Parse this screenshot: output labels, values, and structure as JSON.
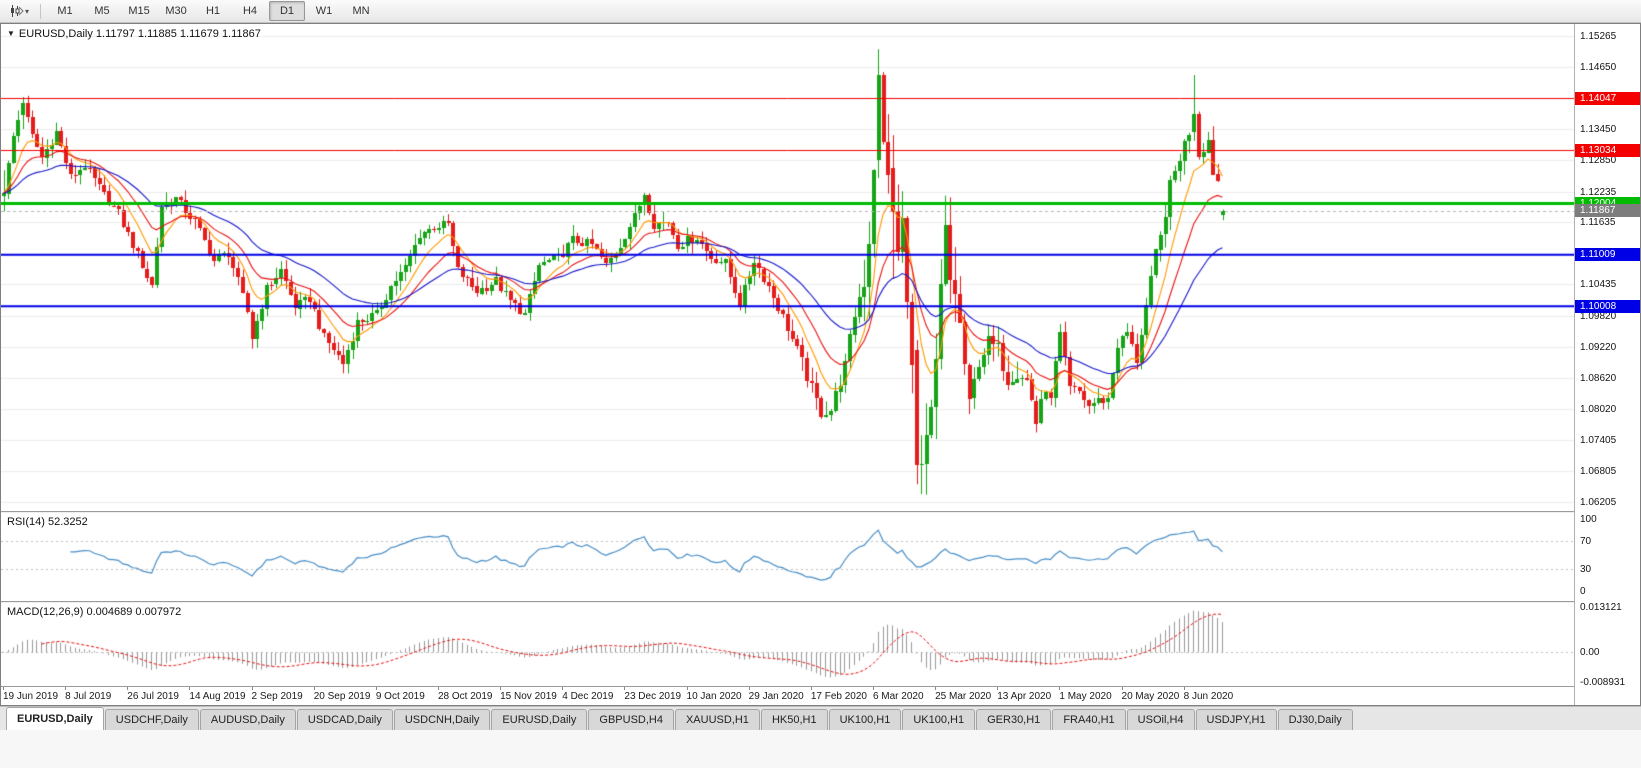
{
  "icons": {
    "window_marker": "▼",
    "chart_dropdown": "▾"
  },
  "toolbar": {
    "timeframes": [
      "M1",
      "M5",
      "M15",
      "M30",
      "H1",
      "H4",
      "D1",
      "W1",
      "MN"
    ],
    "active_timeframe": "D1"
  },
  "tabs": {
    "items": [
      "EURUSD,Daily",
      "USDCHF,Daily",
      "AUDUSD,Daily",
      "USDCAD,Daily",
      "USDCNH,Daily",
      "EURUSD,Daily",
      "GBPUSD,H4",
      "XAUUSD,H1",
      "HK50,H1",
      "UK100,H1",
      "UK100,H1",
      "GER30,H1",
      "FRA40,H1",
      "USOil,H4",
      "USDJPY,H1",
      "DJ30,Daily"
    ],
    "active_index": 0
  },
  "chart_data": {
    "type": "candlestick",
    "symbol": "EURUSD",
    "period": "Daily",
    "main_title": "EURUSD,Daily 1.11797 1.11885 1.11679 1.11867",
    "ohlc": {
      "open": 1.11797,
      "high": 1.11885,
      "low": 1.11679,
      "close": 1.11867
    },
    "candle_colors": {
      "up": "#17a317",
      "down": "#e51c1c"
    },
    "num_candles": 256,
    "y_axis_range": {
      "top": 1.1549,
      "bottom": 1.0603
    },
    "y_axis_ticks": [
      "1.15265",
      "1.14650",
      "1.13450",
      "1.12850",
      "1.12235",
      "1.11635",
      "1.10435",
      "1.09820",
      "1.09220",
      "1.08620",
      "1.08020",
      "1.07405",
      "1.06805",
      "1.06205"
    ],
    "horizontal_lines": [
      {
        "price": 1.14047,
        "color": "#f40000",
        "width": 1,
        "label": "1.14047"
      },
      {
        "price": 1.13034,
        "color": "#f40000",
        "width": 1,
        "label": "1.13034"
      },
      {
        "price": 1.12004,
        "color": "#00bb00",
        "width": 3,
        "label": "1.12004"
      },
      {
        "price": 1.11009,
        "color": "#0000e6",
        "width": 2,
        "label": "1.11009"
      },
      {
        "price": 1.10008,
        "color": "#0000e6",
        "width": 2,
        "label": "1.10008"
      }
    ],
    "current_price": {
      "value": 1.11867,
      "label": "1.11867",
      "badge_color": "#7d7d7d"
    },
    "moving_averages": [
      {
        "period": 8,
        "color": "#ff9900"
      },
      {
        "period": 16,
        "color": "#e81414"
      },
      {
        "period": 34,
        "color": "#1818cc"
      }
    ],
    "x_axis_labels": [
      [
        "19 Jun 2019",
        0
      ],
      [
        "8 Jul 2019",
        13
      ],
      [
        "26 Jul 2019",
        26
      ],
      [
        "14 Aug 2019",
        39
      ],
      [
        "2 Sep 2019",
        52
      ],
      [
        "20 Sep 2019",
        65
      ],
      [
        "9 Oct 2019",
        78
      ],
      [
        "28 Oct 2019",
        91
      ],
      [
        "15 Nov 2019",
        104
      ],
      [
        "4 Dec 2019",
        117
      ],
      [
        "23 Dec 2019",
        130
      ],
      [
        "10 Jan 2020",
        143
      ],
      [
        "29 Jan 2020",
        156
      ],
      [
        "17 Feb 2020",
        169
      ],
      [
        "6 Mar 2020",
        182
      ],
      [
        "25 Mar 2020",
        195
      ],
      [
        "13 Apr 2020",
        208
      ],
      [
        "1 May 2020",
        221
      ],
      [
        "20 May 2020",
        234
      ],
      [
        "8 Jun 2020",
        247
      ]
    ],
    "price_path_waypoints": [
      [
        0,
        1.122
      ],
      [
        2,
        1.133
      ],
      [
        4,
        1.1395
      ],
      [
        6,
        1.133
      ],
      [
        8,
        1.129
      ],
      [
        11,
        1.134
      ],
      [
        14,
        1.125
      ],
      [
        17,
        1.1275
      ],
      [
        20,
        1.123
      ],
      [
        24,
        1.118
      ],
      [
        27,
        1.112
      ],
      [
        31,
        1.104
      ],
      [
        33,
        1.1195
      ],
      [
        36,
        1.121
      ],
      [
        40,
        1.1165
      ],
      [
        44,
        1.109
      ],
      [
        47,
        1.1105
      ],
      [
        51,
        1.099
      ],
      [
        52,
        1.094
      ],
      [
        55,
        1.1035
      ],
      [
        58,
        1.107
      ],
      [
        61,
        1.1
      ],
      [
        64,
        1.1015
      ],
      [
        67,
        1.094
      ],
      [
        70,
        1.0905
      ],
      [
        71,
        1.089
      ],
      [
        74,
        1.097
      ],
      [
        78,
        1.0985
      ],
      [
        81,
        1.104
      ],
      [
        84,
        1.1075
      ],
      [
        87,
        1.114
      ],
      [
        90,
        1.1155
      ],
      [
        93,
        1.116
      ],
      [
        95,
        1.107
      ],
      [
        99,
        1.103
      ],
      [
        103,
        1.105
      ],
      [
        106,
        1.101
      ],
      [
        109,
        1.0985
      ],
      [
        112,
        1.108
      ],
      [
        116,
        1.1095
      ],
      [
        119,
        1.113
      ],
      [
        123,
        1.112
      ],
      [
        126,
        1.108
      ],
      [
        129,
        1.112
      ],
      [
        132,
        1.1175
      ],
      [
        134,
        1.122
      ],
      [
        136,
        1.116
      ],
      [
        139,
        1.1165
      ],
      [
        141,
        1.112
      ],
      [
        145,
        1.1135
      ],
      [
        148,
        1.1095
      ],
      [
        151,
        1.1085
      ],
      [
        154,
        1.1005
      ],
      [
        157,
        1.109
      ],
      [
        160,
        1.104
      ],
      [
        163,
        1.098
      ],
      [
        166,
        1.0915
      ],
      [
        169,
        1.084
      ],
      [
        171,
        1.0795
      ],
      [
        173,
        1.08
      ],
      [
        176,
        1.0885
      ],
      [
        178,
        1.0985
      ],
      [
        180,
        1.1055
      ],
      [
        181,
        1.1135
      ],
      [
        182,
        1.128
      ],
      [
        183,
        1.145
      ],
      [
        184,
        1.131
      ],
      [
        185,
        1.127
      ],
      [
        186,
        1.1185
      ],
      [
        187,
        1.1105
      ],
      [
        188,
        1.1165
      ],
      [
        189,
        1.0995
      ],
      [
        190,
        1.0915
      ],
      [
        191,
        1.0692
      ],
      [
        192,
        1.0694
      ],
      [
        193,
        1.0725
      ],
      [
        194,
        1.0785
      ],
      [
        195,
        1.088
      ],
      [
        196,
        1.103
      ],
      [
        197,
        1.114
      ],
      [
        198,
        1.1048
      ],
      [
        199,
        1.1031
      ],
      [
        200,
        1.0965
      ],
      [
        202,
        1.0808
      ],
      [
        204,
        1.0895
      ],
      [
        206,
        1.093
      ],
      [
        208,
        1.0915
      ],
      [
        210,
        1.086
      ],
      [
        212,
        1.0875
      ],
      [
        214,
        1.0858
      ],
      [
        216,
        1.0775
      ],
      [
        217,
        1.0822
      ],
      [
        219,
        1.083
      ],
      [
        221,
        1.0945
      ],
      [
        223,
        1.084
      ],
      [
        225,
        1.0834
      ],
      [
        227,
        1.0807
      ],
      [
        229,
        1.0818
      ],
      [
        231,
        1.082
      ],
      [
        233,
        1.0925
      ],
      [
        235,
        1.095
      ],
      [
        237,
        1.0896
      ],
      [
        239,
        1.1002
      ],
      [
        241,
        1.1101
      ],
      [
        242,
        1.1134
      ],
      [
        244,
        1.1234
      ],
      [
        246,
        1.1291
      ],
      [
        248,
        1.134
      ],
      [
        249,
        1.1374
      ],
      [
        250,
        1.1297
      ],
      [
        252,
        1.1324
      ],
      [
        253,
        1.1264
      ],
      [
        254,
        1.1245
      ],
      [
        255,
        1.1187
      ]
    ],
    "forced_candles": {
      "0": [
        1.1215,
        1.1265,
        1.1185,
        1.122
      ],
      "4": [
        1.1372,
        1.1407,
        1.1345,
        1.1395
      ],
      "183": [
        1.1285,
        1.15,
        1.125,
        1.145
      ],
      "186": [
        1.127,
        1.1333,
        1.1054,
        1.1185
      ],
      "191": [
        1.0915,
        1.0935,
        1.0655,
        1.0692
      ],
      "192": [
        1.0692,
        1.075,
        1.0636,
        1.0694
      ],
      "249": [
        1.134,
        1.145,
        1.1322,
        1.1374
      ],
      "255": [
        1.11797,
        1.11885,
        1.11679,
        1.11867
      ]
    },
    "rsi": {
      "label": "RSI(14) 52.3252",
      "period": 14,
      "current": 52.3252,
      "levels": [
        70,
        30
      ],
      "axis_ticks": [
        "100",
        "70",
        "30",
        "0"
      ],
      "axis_values": [
        100,
        70,
        30,
        0
      ],
      "color": "#4a8fc7"
    },
    "macd": {
      "label": "MACD(12,26,9) 0.004689 0.007972",
      "fast": 12,
      "slow": 26,
      "signal": 9,
      "current_macd": 0.004689,
      "current_signal": 0.007972,
      "axis_ticks": [
        [
          "0.013121",
          0.013121
        ],
        [
          "0.00",
          0
        ],
        [
          "-0.008931",
          -0.008931
        ]
      ],
      "range": [
        -0.008931,
        0.013121
      ],
      "hist_color": "#9a9a9a",
      "signal_color": "#e81414"
    }
  }
}
